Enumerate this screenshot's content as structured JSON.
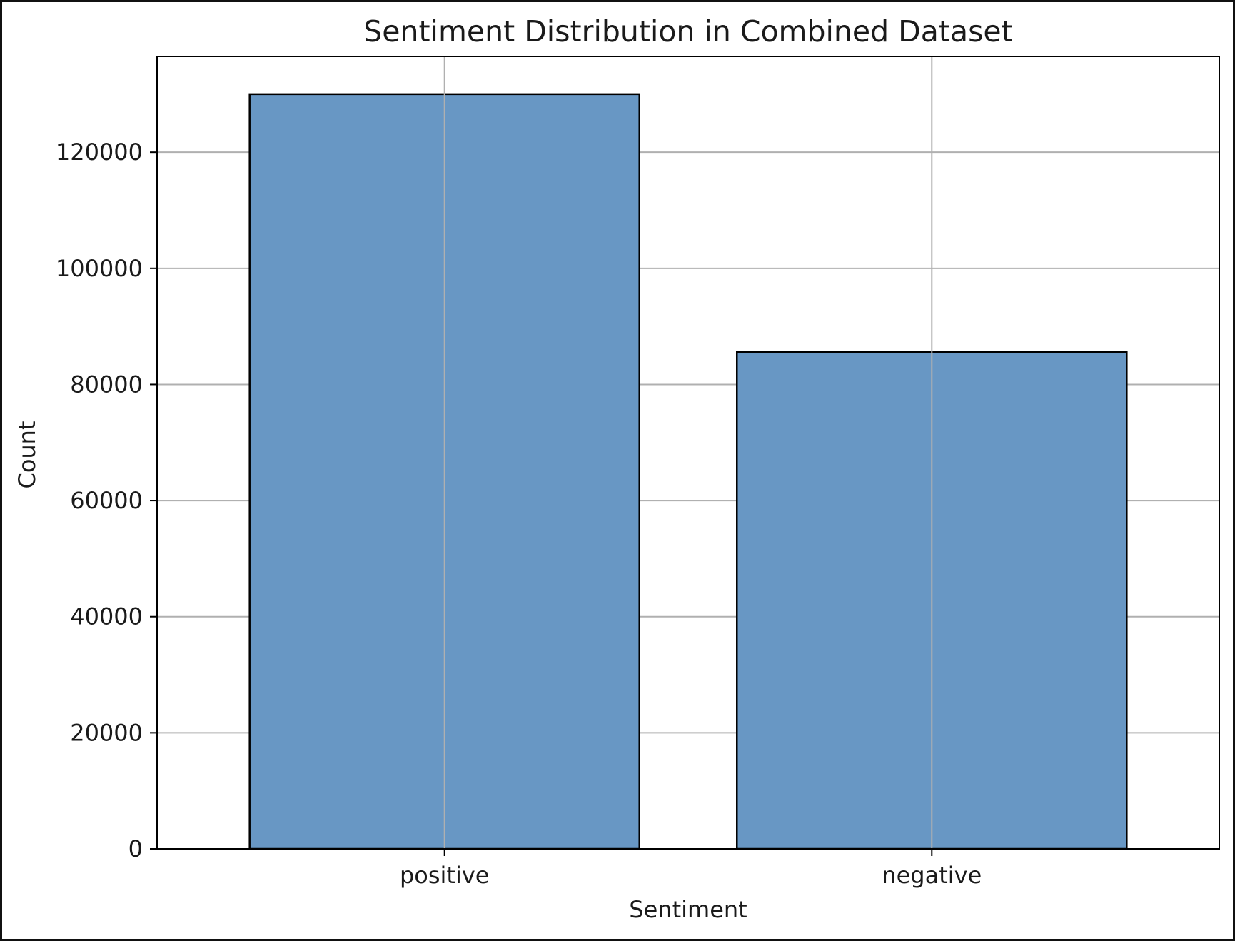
{
  "chart_data": {
    "type": "bar",
    "title": "Sentiment Distribution in Combined Dataset",
    "xlabel": "Sentiment",
    "ylabel": "Count",
    "categories": [
      "positive",
      "negative"
    ],
    "values": [
      130000,
      85600
    ],
    "ylim": [
      0,
      136500
    ],
    "yticks": [
      0,
      20000,
      40000,
      60000,
      80000,
      100000,
      120000
    ],
    "grid": true,
    "colors": {
      "bar_fill": "#6897c4",
      "bar_edge": "#000000",
      "grid": "#b0b0b0",
      "axis": "#000000",
      "text": "#1a1a1a"
    }
  }
}
